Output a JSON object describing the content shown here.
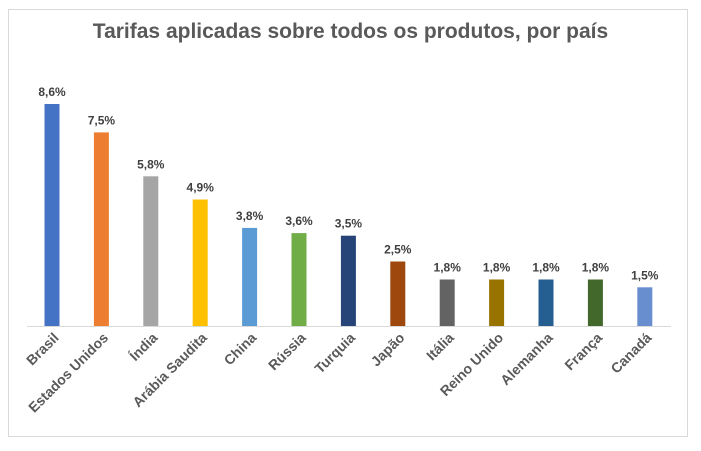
{
  "chart_data": {
    "type": "bar",
    "title": "Tarifas aplicadas sobre todos os produtos, por país",
    "xlabel": "",
    "ylabel": "",
    "ylim": [
      0,
      8.6
    ],
    "grid": false,
    "legend": "none",
    "categories": [
      "Brasil",
      "Estados Unidos",
      "Índia",
      "Arábia Saudita",
      "China",
      "Rússia",
      "Turquia",
      "Japão",
      "Itália",
      "Reino Unido",
      "Alemanha",
      "França",
      "Canadá"
    ],
    "values": [
      8.6,
      7.5,
      5.8,
      4.9,
      3.8,
      3.6,
      3.5,
      2.5,
      1.8,
      1.8,
      1.8,
      1.8,
      1.5
    ],
    "data_labels": [
      "8,6%",
      "7,5%",
      "5,8%",
      "4,9%",
      "3,8%",
      "3,6%",
      "3,5%",
      "2,5%",
      "1,8%",
      "1,8%",
      "1,8%",
      "1,8%",
      "1,5%"
    ],
    "colors": [
      "#4472c4",
      "#ed7d31",
      "#a5a5a5",
      "#ffc000",
      "#5b9bd5",
      "#70ad47",
      "#264478",
      "#9e480e",
      "#636363",
      "#997300",
      "#255e91",
      "#43682b",
      "#698ed0"
    ]
  }
}
